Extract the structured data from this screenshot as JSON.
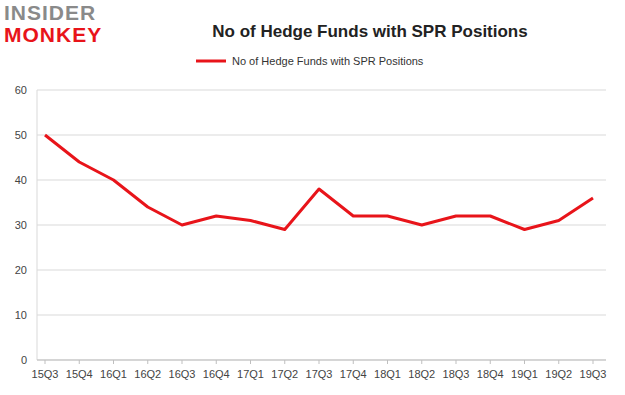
{
  "chart_data": {
    "type": "line",
    "title": "No of Hedge Funds with SPR Positions",
    "annotations": [
      "INSIDER",
      "MONKEY"
    ],
    "categories": [
      "15Q3",
      "15Q4",
      "16Q1",
      "16Q2",
      "16Q3",
      "16Q4",
      "17Q1",
      "17Q2",
      "17Q3",
      "17Q4",
      "18Q1",
      "18Q2",
      "18Q3",
      "18Q4",
      "19Q1",
      "19Q2",
      "19Q3"
    ],
    "series": [
      {
        "name": "No of Hedge Funds with SPR Positions",
        "color": "#e8141a",
        "values": [
          50,
          44,
          40,
          34,
          30,
          32,
          31,
          29,
          38,
          32,
          32,
          30,
          32,
          32,
          29,
          31,
          36
        ]
      }
    ],
    "ylim": [
      0,
      60
    ],
    "yticks": [
      0,
      10,
      20,
      30,
      40,
      50,
      60
    ],
    "grid": true,
    "legend": "top"
  }
}
